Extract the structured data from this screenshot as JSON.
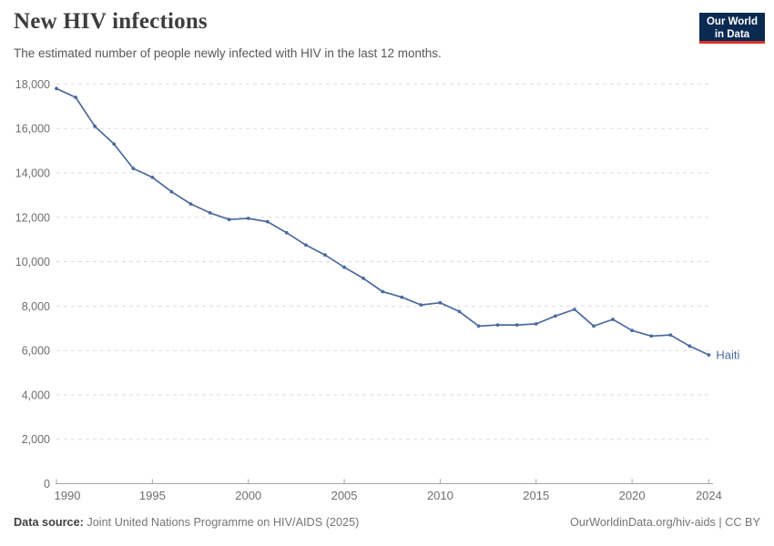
{
  "header": {
    "title": "New HIV infections",
    "subtitle": "The estimated number of people newly infected with HIV in the last 12 months.",
    "logo": {
      "line1": "Our World",
      "line2": "in Data"
    }
  },
  "chart_data": {
    "type": "line",
    "title": "New HIV infections",
    "entity": "Haiti",
    "x": [
      1990,
      1991,
      1992,
      1993,
      1994,
      1995,
      1996,
      1997,
      1998,
      1999,
      2000,
      2001,
      2002,
      2003,
      2004,
      2005,
      2006,
      2007,
      2008,
      2009,
      2010,
      2011,
      2012,
      2013,
      2014,
      2015,
      2016,
      2017,
      2018,
      2019,
      2020,
      2021,
      2022,
      2023,
      2024
    ],
    "series": [
      {
        "name": "Haiti",
        "color": "#4C6A9C",
        "values": [
          17800,
          17400,
          16100,
          15300,
          14200,
          13800,
          13150,
          12600,
          12200,
          11900,
          11950,
          11800,
          11300,
          10750,
          10300,
          9750,
          9250,
          8650,
          8400,
          8050,
          8150,
          7750,
          7100,
          7150,
          7150,
          7200,
          7550,
          7850,
          7100,
          7400,
          6900,
          6650,
          6700,
          6200,
          5800
        ]
      }
    ],
    "xlim": [
      1990,
      2024
    ],
    "ylim": [
      0,
      18000
    ],
    "x_ticks": [
      1990,
      1995,
      2000,
      2005,
      2010,
      2015,
      2020,
      2024
    ],
    "y_ticks": [
      0,
      2000,
      4000,
      6000,
      8000,
      10000,
      12000,
      14000,
      16000,
      18000
    ],
    "grid": "horizontal-dashed",
    "legend_position": "end-of-line-label",
    "end_label": "Haiti"
  },
  "footer": {
    "source_label": "Data source:",
    "source_text": " Joint United Nations Programme on HIV/AIDS (2025)",
    "credit": "OurWorldinData.org/hiv-aids | CC BY"
  },
  "colors": {
    "line": "#4C6A9C",
    "grid": "#dddddd",
    "axis": "#a5a5a5",
    "tick_label": "#6e6e6e",
    "logo_bg": "#0b2a52",
    "logo_accent": "#d8352c"
  }
}
